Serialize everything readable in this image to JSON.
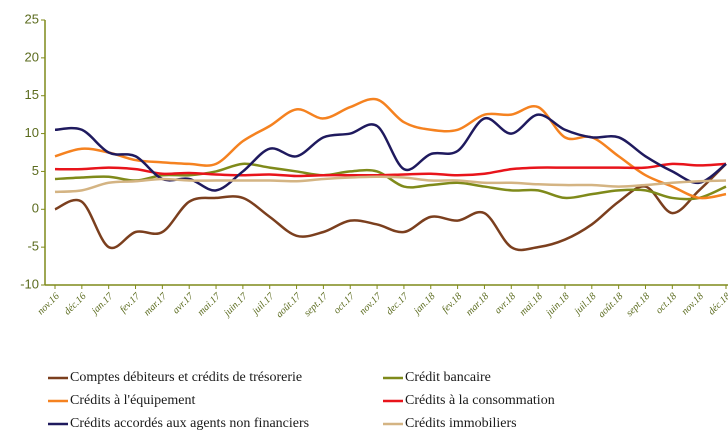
{
  "chart_data": {
    "type": "line",
    "categories": [
      "nov.16",
      "déc.16",
      "jan.17",
      "fev.17",
      "mar.17",
      "avr.17",
      "mai.17",
      "juin.17",
      "juil.17",
      "août.17",
      "sept.17",
      "oct.17",
      "nov.17",
      "dec.17",
      "jan.18",
      "fev.18",
      "mar.18",
      "avr.18",
      "mai.18",
      "juin.18",
      "juil.18",
      "août.18",
      "sept.18",
      "oct.18",
      "nov.18",
      "déc.18"
    ],
    "ylim": [
      -10,
      25
    ],
    "yticks": [
      -10,
      -5,
      0,
      5,
      10,
      15,
      20,
      25
    ],
    "series": [
      {
        "name": "Comptes débiteurs et crédits de trésorerie",
        "color": "#7b3f1e",
        "values": [
          0,
          1,
          -5,
          -3,
          -3,
          1,
          1.5,
          1.5,
          -1,
          -3.5,
          -3,
          -1.5,
          -2,
          -3,
          -1,
          -1.5,
          -0.5,
          -5,
          -5,
          -4,
          -2,
          1,
          3,
          -0.5,
          2.5,
          6
        ]
      },
      {
        "name": "Crédit bancaire",
        "color": "#7f8a1a",
        "values": [
          4,
          4.2,
          4.3,
          3.8,
          4.5,
          4.5,
          5,
          6,
          5.5,
          5,
          4.5,
          5,
          5,
          3,
          3.2,
          3.5,
          3,
          2.5,
          2.5,
          1.5,
          2,
          2.5,
          2.5,
          1.5,
          1.5,
          3
        ]
      },
      {
        "name": "Crédits à l'équipement",
        "color": "#f58220",
        "values": [
          7,
          8,
          7.5,
          6.5,
          6.2,
          6,
          6,
          9,
          11,
          13.2,
          12,
          13.5,
          14.5,
          11.5,
          10.5,
          10.5,
          12.5,
          12.5,
          13.5,
          9.5,
          9.5,
          7,
          4.5,
          3,
          1.5,
          2
        ]
      },
      {
        "name": "Crédits à la consommation",
        "color": "#e8141b",
        "values": [
          5.3,
          5.3,
          5.5,
          5.3,
          4.7,
          4.8,
          4.6,
          4.5,
          4.6,
          4.4,
          4.5,
          4.5,
          4.5,
          4.6,
          4.7,
          4.5,
          4.7,
          5.3,
          5.5,
          5.5,
          5.5,
          5.5,
          5.5,
          6,
          5.8,
          6
        ]
      },
      {
        "name": "Crédits accordés aux agents non financiers",
        "color": "#1f1a5e",
        "values": [
          10.5,
          10.5,
          7.5,
          7,
          4,
          4,
          2.5,
          5,
          8,
          7,
          9.5,
          10,
          11,
          5.3,
          7.3,
          7.7,
          12,
          10,
          12.5,
          10.5,
          9.5,
          9.5,
          7,
          5,
          3.5,
          6
        ]
      },
      {
        "name": "Crédits immobiliers",
        "color": "#d4b483",
        "values": [
          2.3,
          2.5,
          3.5,
          3.7,
          4,
          3.8,
          3.8,
          3.8,
          3.8,
          3.7,
          4,
          4.2,
          4.3,
          4.2,
          3.8,
          3.8,
          3.5,
          3.5,
          3.3,
          3.2,
          3.2,
          3,
          3.2,
          3.5,
          3.7,
          3.8
        ]
      }
    ]
  }
}
